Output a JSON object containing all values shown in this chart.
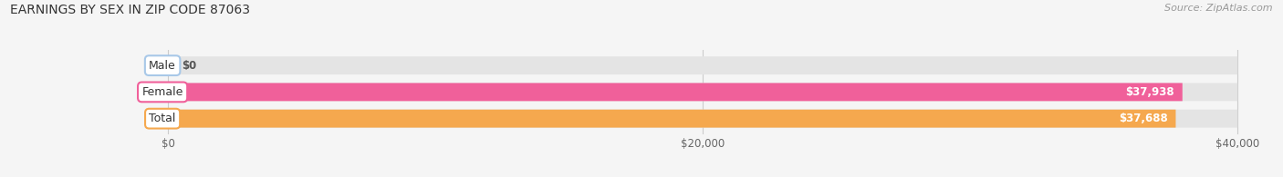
{
  "title": "EARNINGS BY SEX IN ZIP CODE 87063",
  "source": "Source: ZipAtlas.com",
  "categories": [
    "Male",
    "Female",
    "Total"
  ],
  "values": [
    0,
    37938,
    37688
  ],
  "bar_colors": [
    "#a8c8e8",
    "#f0609a",
    "#f5a84e"
  ],
  "value_labels": [
    "$0",
    "$37,938",
    "$37,688"
  ],
  "xlim": [
    0,
    40000
  ],
  "xticks": [
    0,
    20000,
    40000
  ],
  "xtick_labels": [
    "$0",
    "$20,000",
    "$40,000"
  ],
  "background_color": "#f5f5f5",
  "bar_bg_color": "#e4e4e4",
  "title_fontsize": 10,
  "source_fontsize": 8,
  "bar_height": 0.68
}
